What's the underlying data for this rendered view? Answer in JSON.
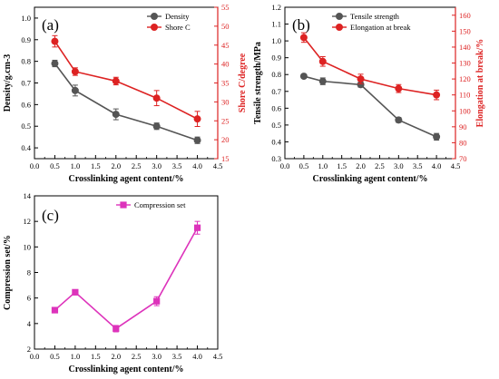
{
  "chart_data": [
    {
      "type": "line",
      "panel_label": "(a)",
      "xlabel": "Crosslinking agent content/%",
      "ylabel": "Density/g.cm-3",
      "y2label": "Shore C/degree",
      "xlim": [
        0.0,
        4.5
      ],
      "ylim": [
        0.35,
        1.05
      ],
      "y2lim": [
        15,
        55
      ],
      "xticks": [
        "0.0",
        "0.5",
        "1.0",
        "1.5",
        "2.0",
        "2.5",
        "3.0",
        "3.5",
        "4.0",
        "4.5"
      ],
      "yticks": [
        "0.4",
        "0.5",
        "0.6",
        "0.7",
        "0.8",
        "0.9",
        "1.0"
      ],
      "y2ticks": [
        "15",
        "20",
        "25",
        "30",
        "35",
        "40",
        "45",
        "50",
        "55"
      ],
      "x": [
        0.5,
        1.0,
        2.0,
        3.0,
        4.0
      ],
      "series": [
        {
          "name": "Density",
          "axis": "left",
          "color": "#555555",
          "marker": "circle",
          "values": [
            0.79,
            0.665,
            0.555,
            0.5,
            0.435
          ],
          "errors": [
            0.015,
            0.025,
            0.025,
            0.015,
            0.015
          ]
        },
        {
          "name": "Shore C",
          "axis": "right",
          "color": "#dd2222",
          "marker": "circle",
          "values": [
            46.0,
            38.0,
            35.5,
            31.0,
            25.5
          ],
          "errors": [
            1.5,
            1.0,
            1.0,
            2.0,
            2.0
          ]
        }
      ],
      "legend": "top-right"
    },
    {
      "type": "line",
      "panel_label": "(b)",
      "xlabel": "Crosslinking agent content/%",
      "ylabel": "Tensile strength/MPa",
      "y2label": "Elongation at break/%",
      "xlim": [
        0.0,
        4.5
      ],
      "ylim": [
        0.3,
        1.2
      ],
      "y2lim": [
        70,
        165
      ],
      "xticks": [
        "0.0",
        "0.5",
        "1.0",
        "1.5",
        "2.0",
        "2.5",
        "3.0",
        "3.5",
        "4.0",
        "4.5"
      ],
      "yticks": [
        "0.3",
        "0.4",
        "0.5",
        "0.6",
        "0.7",
        "0.8",
        "0.9",
        "1.0",
        "1.1",
        "1.2"
      ],
      "y2ticks": [
        "70",
        "80",
        "90",
        "100",
        "110",
        "120",
        "130",
        "140",
        "150",
        "160"
      ],
      "x": [
        0.5,
        1.0,
        2.0,
        3.0,
        4.0
      ],
      "series": [
        {
          "name": "Tensile strength",
          "axis": "left",
          "color": "#555555",
          "marker": "circle",
          "values": [
            0.79,
            0.76,
            0.74,
            0.53,
            0.43
          ],
          "errors": [
            0.012,
            0.02,
            0.015,
            0.015,
            0.02
          ]
        },
        {
          "name": "Elongation at break",
          "axis": "right",
          "color": "#dd2222",
          "marker": "circle",
          "values": [
            146,
            131,
            120,
            114,
            110
          ],
          "errors": [
            3,
            3,
            3,
            2.5,
            3
          ]
        }
      ],
      "legend": "top-right"
    },
    {
      "type": "line",
      "panel_label": "(c)",
      "xlabel": "Crosslinking agent content/%",
      "ylabel": "Compression set/%",
      "xlim": [
        0.0,
        4.5
      ],
      "ylim": [
        2,
        14
      ],
      "xticks": [
        "0.0",
        "0.5",
        "1.0",
        "1.5",
        "2.0",
        "2.5",
        "3.0",
        "3.5",
        "4.0",
        "4.5"
      ],
      "yticks": [
        "2",
        "4",
        "6",
        "8",
        "10",
        "12",
        "14"
      ],
      "x": [
        0.5,
        1.0,
        2.0,
        3.0,
        4.0
      ],
      "series": [
        {
          "name": "Compression set",
          "axis": "left",
          "color": "#dd33bb",
          "marker": "square",
          "values": [
            5.05,
            6.45,
            3.6,
            5.75,
            11.5
          ],
          "errors": [
            0.2,
            0.2,
            0.25,
            0.35,
            0.5
          ]
        }
      ],
      "legend": "top-right"
    }
  ]
}
